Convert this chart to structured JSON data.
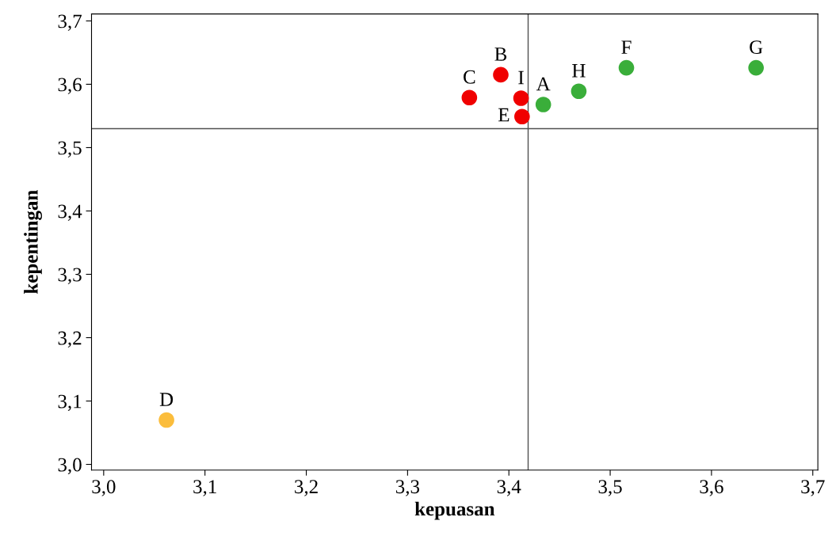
{
  "chart_data": {
    "type": "scatter",
    "xlabel": "kepuasan",
    "ylabel": "kepentingan",
    "x": [
      3.434,
      3.392,
      3.361,
      3.062,
      3.413,
      3.516,
      3.644,
      3.469,
      3.412
    ],
    "values": [
      3.568,
      3.615,
      3.579,
      3.07,
      3.549,
      3.626,
      3.626,
      3.589,
      3.578
    ],
    "colors": [
      "#3aae3a",
      "#f00000",
      "#f00000",
      "#fbbd3c",
      "#f00000",
      "#3aae3a",
      "#3aae3a",
      "#3aae3a",
      "#f00000"
    ],
    "annotations": [
      {
        "text": "A",
        "x": 3.434,
        "y": 3.568
      },
      {
        "text": "B",
        "x": 3.392,
        "y": 3.615
      },
      {
        "text": "C",
        "x": 3.361,
        "y": 3.579
      },
      {
        "text": "D",
        "x": 3.062,
        "y": 3.07
      },
      {
        "text": "E",
        "x": 3.413,
        "y": 3.549
      },
      {
        "text": "F",
        "x": 3.516,
        "y": 3.626
      },
      {
        "text": "G",
        "x": 3.644,
        "y": 3.626
      },
      {
        "text": "H",
        "x": 3.469,
        "y": 3.589
      },
      {
        "text": "I",
        "x": 3.412,
        "y": 3.578
      }
    ],
    "ref_lines": [
      {
        "axis": "x",
        "value": 3.419,
        "color": "#505050"
      },
      {
        "axis": "y",
        "value": 3.53,
        "color": "#505050"
      }
    ],
    "xlim": [
      2.988,
      3.705
    ],
    "ylim": [
      2.991,
      3.711
    ],
    "xticks": [
      {
        "value": 3.0,
        "label": "3,0"
      },
      {
        "value": 3.1,
        "label": "3,1"
      },
      {
        "value": 3.2,
        "label": "3,2"
      },
      {
        "value": 3.3,
        "label": "3,3"
      },
      {
        "value": 3.4,
        "label": "3,4"
      },
      {
        "value": 3.5,
        "label": "3,5"
      },
      {
        "value": 3.6,
        "label": "3,6"
      },
      {
        "value": 3.7,
        "label": "3,7"
      }
    ],
    "yticks": [
      {
        "value": 3.0,
        "label": "3,0"
      },
      {
        "value": 3.1,
        "label": "3,1"
      },
      {
        "value": 3.2,
        "label": "3,2"
      },
      {
        "value": 3.3,
        "label": "3,3"
      },
      {
        "value": 3.4,
        "label": "3,4"
      },
      {
        "value": 3.5,
        "label": "3,5"
      },
      {
        "value": 3.6,
        "label": "3,6"
      },
      {
        "value": 3.7,
        "label": "3,7"
      }
    ],
    "marker": "circle",
    "grid": false
  }
}
